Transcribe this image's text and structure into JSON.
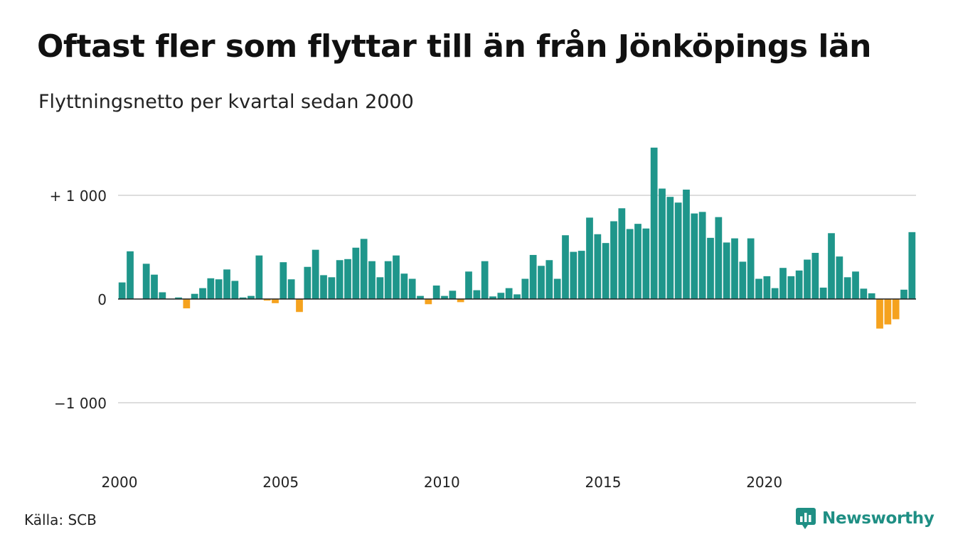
{
  "title": "Oftast fler som flyttar till än från Jönköpings län",
  "subtitle": "Flyttningsnetto per kvartal sedan 2000",
  "source": "Källa: SCB",
  "brand": "Newsworthy",
  "colors": {
    "positive": "#1f968b",
    "negative": "#f5a21e",
    "grid": "#dddddd",
    "zero": "#222222"
  },
  "chart_data": {
    "type": "bar",
    "title": "Oftast fler som flyttar till än från Jönköpings län",
    "subtitle": "Flyttningsnetto per kvartal sedan 2000",
    "x_tick_labels": [
      "2000",
      "2005",
      "2010",
      "2015",
      "2020"
    ],
    "y_tick_labels": [
      {
        "value": 1000,
        "label": "+ 1 000"
      },
      {
        "value": 0,
        "label": "0"
      },
      {
        "value": -1000,
        "label": "−1 000"
      }
    ],
    "ylim": [
      -1480,
      1480
    ],
    "grid": true,
    "start": "2000 Q1",
    "series": [
      {
        "values": [
          160,
          460,
          0,
          340,
          235,
          65,
          0,
          15,
          -90,
          50,
          105,
          200,
          190,
          285,
          175,
          15,
          30,
          420,
          -15,
          -40,
          355,
          190,
          -125,
          310,
          475,
          230,
          210,
          375,
          385,
          495,
          580,
          365,
          210,
          365,
          420,
          245,
          195,
          30,
          -50,
          130,
          30,
          80,
          -30,
          265,
          85,
          365,
          25,
          60,
          105,
          45,
          195,
          425,
          320,
          375,
          195,
          615,
          455,
          465,
          785,
          625,
          540,
          750,
          875,
          675,
          725,
          680,
          1460,
          1065,
          985,
          930,
          1055,
          825,
          840,
          590,
          790,
          545,
          585,
          360,
          585,
          195,
          220,
          105,
          300,
          220,
          275,
          380,
          445,
          110,
          635,
          410,
          210,
          265,
          100,
          55,
          -285,
          -245,
          -195,
          90,
          645
        ]
      }
    ]
  }
}
